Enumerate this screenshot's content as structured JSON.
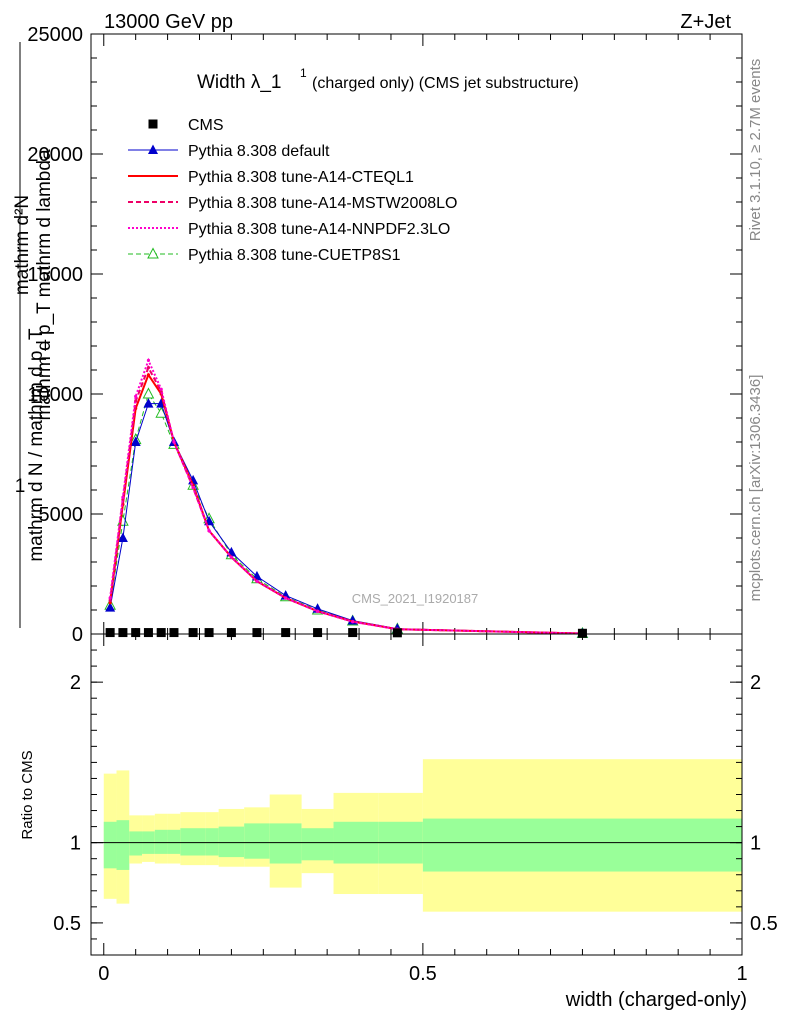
{
  "header": {
    "left": "13000 GeV pp",
    "right": "Z+Jet"
  },
  "side": {
    "rivet": "Rivet 3.1.10, ≥ 2.7M events",
    "mcplots": "mcplots.cern.ch [arXiv:1306.3436]"
  },
  "main": {
    "title_main": "Width λ_1",
    "title_sup": "1",
    "title_tail": "(charged only) (CMS jet substructure)",
    "ylabel_parts": [
      "1",
      "mathrm d",
      "N",
      "mathrm d",
      "mathrm d",
      "N",
      "p",
      "T",
      "mathrm d p",
      "mathrm d lambda",
      "T",
      "mathrm",
      "mathrm d",
      "mathrm d",
      "mathrm d"
    ],
    "ylabel_top": "mathrm d²N",
    "ylabel_mid": "mathrm d p_T mathrm d lambda",
    "ylabel_one": "1",
    "ylabel_bottom": "mathrm d N / mathrm d p_T",
    "watermark": "CMS_2021_I1920187",
    "xlabel": "width (charged-only)",
    "ratio_ylabel": "Ratio to CMS"
  },
  "colors": {
    "cms": "#000000",
    "default": "#0000cc",
    "cteql1": "#ff0000",
    "mstw": "#ee0066",
    "nnpdf": "#ff00cc",
    "cuetp8s1": "#22bb22",
    "band_inner": "#99ff99",
    "band_outer": "#ffff99"
  },
  "chart_data": [
    {
      "type": "line",
      "xlim": [
        -0.02,
        1.0
      ],
      "ylim": [
        0,
        25000
      ],
      "yticks": [
        0,
        5000,
        10000,
        15000,
        20000,
        25000
      ],
      "ytick_labels": [
        "0",
        "5000",
        "10000",
        "15000",
        "20000",
        "25000"
      ],
      "x": [
        0.01,
        0.03,
        0.05,
        0.07,
        0.09,
        0.11,
        0.14,
        0.165,
        0.2,
        0.24,
        0.285,
        0.335,
        0.39,
        0.46,
        0.75
      ],
      "legend_position": "top-left",
      "series": [
        {
          "name": "CMS",
          "marker": "square",
          "values": [
            60,
            60,
            60,
            60,
            60,
            60,
            60,
            60,
            60,
            60,
            60,
            60,
            60,
            50,
            30
          ]
        },
        {
          "name": "Pythia 8.308 default",
          "marker": "triangle",
          "values": [
            1100,
            4000,
            8000,
            9600,
            9600,
            8000,
            6400,
            4700,
            3400,
            2400,
            1600,
            1050,
            560,
            220,
            25
          ]
        },
        {
          "name": "Pythia 8.308 tune-A14-CTEQL1",
          "marker": "none",
          "values": [
            1300,
            5400,
            9400,
            10800,
            10000,
            8000,
            6200,
            4300,
            3200,
            2200,
            1500,
            950,
            520,
            200,
            20
          ]
        },
        {
          "name": "Pythia 8.308 tune-A14-MSTW2008LO",
          "marker": "none",
          "values": [
            1400,
            5600,
            9700,
            11100,
            10100,
            8000,
            6100,
            4300,
            3200,
            2200,
            1500,
            950,
            520,
            200,
            20
          ]
        },
        {
          "name": "Pythia 8.308 tune-A14-NNPDF2.3LO",
          "marker": "none",
          "values": [
            1500,
            5700,
            9900,
            11400,
            10200,
            8000,
            6100,
            4300,
            3200,
            2200,
            1500,
            950,
            510,
            200,
            20
          ]
        },
        {
          "name": "Pythia 8.308 tune-CUETP8S1",
          "marker": "open-triangle",
          "values": [
            1200,
            4700,
            8100,
            10000,
            9200,
            7900,
            6200,
            4800,
            3300,
            2300,
            1550,
            1000,
            540,
            210,
            22
          ]
        }
      ]
    },
    {
      "type": "area",
      "xlim": [
        -0.02,
        1.0
      ],
      "ylim": [
        0.3,
        2.3
      ],
      "yticks": [
        0.5,
        1,
        2
      ],
      "ytick_labels": [
        "0.5",
        "1",
        "2"
      ],
      "xticks": [
        0,
        0.5,
        1
      ],
      "xtick_labels": [
        "0",
        "0.5",
        "1"
      ],
      "bins": [
        [
          0.0,
          0.02
        ],
        [
          0.02,
          0.04
        ],
        [
          0.04,
          0.06
        ],
        [
          0.06,
          0.08
        ],
        [
          0.08,
          0.1
        ],
        [
          0.1,
          0.12
        ],
        [
          0.12,
          0.16
        ],
        [
          0.16,
          0.18
        ],
        [
          0.18,
          0.22
        ],
        [
          0.22,
          0.26
        ],
        [
          0.26,
          0.31
        ],
        [
          0.31,
          0.36
        ],
        [
          0.36,
          0.43
        ],
        [
          0.43,
          0.5
        ],
        [
          0.5,
          1.0
        ]
      ],
      "inner_band": [
        [
          0.84,
          1.13
        ],
        [
          0.83,
          1.14
        ],
        [
          0.92,
          1.07
        ],
        [
          0.93,
          1.07
        ],
        [
          0.93,
          1.08
        ],
        [
          0.93,
          1.08
        ],
        [
          0.92,
          1.09
        ],
        [
          0.92,
          1.09
        ],
        [
          0.91,
          1.1
        ],
        [
          0.9,
          1.12
        ],
        [
          0.87,
          1.12
        ],
        [
          0.89,
          1.09
        ],
        [
          0.87,
          1.13
        ],
        [
          0.87,
          1.13
        ],
        [
          0.82,
          1.15
        ]
      ],
      "outer_band": [
        [
          0.65,
          1.43
        ],
        [
          0.62,
          1.45
        ],
        [
          0.87,
          1.17
        ],
        [
          0.88,
          1.17
        ],
        [
          0.87,
          1.18
        ],
        [
          0.87,
          1.18
        ],
        [
          0.86,
          1.19
        ],
        [
          0.86,
          1.19
        ],
        [
          0.85,
          1.21
        ],
        [
          0.85,
          1.22
        ],
        [
          0.72,
          1.3
        ],
        [
          0.81,
          1.21
        ],
        [
          0.68,
          1.31
        ],
        [
          0.68,
          1.31
        ],
        [
          0.57,
          1.52
        ]
      ]
    }
  ]
}
